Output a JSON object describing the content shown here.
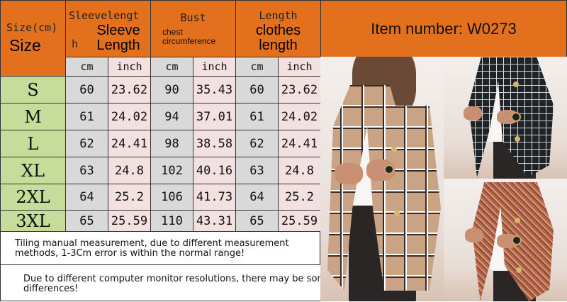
{
  "header": {
    "size_cn": "Size(cm)",
    "size_en": "Size",
    "sleeve_cn": "Sleevelengt",
    "sleeve_cn_tail": "h",
    "sleeve_en": "Sleeve Length",
    "bust_cn": "Bust",
    "bust_en": "chest circumference",
    "length_cn": "Length",
    "length_en": "clothes length",
    "item_number": "Item number: W0273"
  },
  "units": [
    "cm",
    "inch",
    "cm",
    "inch",
    "cm",
    "inch"
  ],
  "rows": [
    {
      "size": "S",
      "values": [
        "60",
        "23.62",
        "90",
        "35.43",
        "60",
        "23.62"
      ]
    },
    {
      "size": "M",
      "values": [
        "61",
        "24.02",
        "94",
        "37.01",
        "61",
        "24.02"
      ]
    },
    {
      "size": "L",
      "values": [
        "62",
        "24.41",
        "98",
        "38.58",
        "62",
        "24.41"
      ]
    },
    {
      "size": "XL",
      "values": [
        "63",
        "24.8",
        "102",
        "40.16",
        "63",
        "24.8"
      ]
    },
    {
      "size": "2XL",
      "values": [
        "64",
        "25.2",
        "106",
        "41.73",
        "64",
        "25.2"
      ]
    },
    {
      "size": "3XL",
      "values": [
        "65",
        "25.59",
        "110",
        "43.31",
        "65",
        "25.59"
      ]
    }
  ],
  "notes": {
    "measurement": "Tiling manual measurement, due to different measurement methods, 1-3Cm error is within the normal range!",
    "color": "Due to different computer monitor resolutions, there may be some color differences!"
  },
  "colors": {
    "header": "#e2701c",
    "size_col": "#c6dc9b",
    "cm_col": "#d9d9d9",
    "inch_col": "#f3e1e1"
  }
}
